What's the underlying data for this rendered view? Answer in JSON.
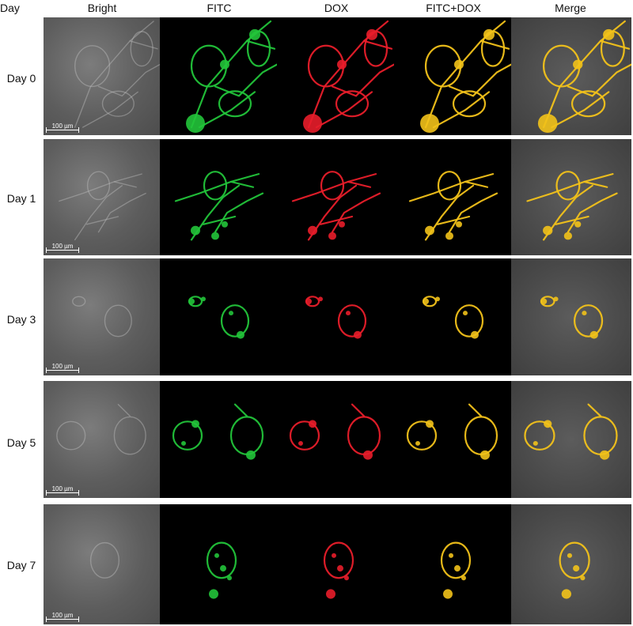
{
  "headers": {
    "day": "Day",
    "bright": "Bright",
    "fitc": "FITC",
    "dox": "DOX",
    "fitc_dox": "FITC+DOX",
    "merge": "Merge"
  },
  "rows": [
    {
      "label": "Day 0",
      "scale": "100 µm"
    },
    {
      "label": "Day 1",
      "scale": "100 µm"
    },
    {
      "label": "Day 3",
      "scale": "100 µm"
    },
    {
      "label": "Day 5",
      "scale": "100 µm"
    },
    {
      "label": "Day 7",
      "scale": "100 µm"
    }
  ],
  "colors": {
    "fitc": "#22c43a",
    "dox": "#e81d2a",
    "overlay": "#f2c21a",
    "bright": "#bdbdbd"
  }
}
